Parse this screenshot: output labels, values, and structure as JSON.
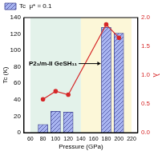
{
  "chart_data": {
    "type": "bar",
    "x_label": "Pressure (GPa)",
    "y_label": "Tc (K)",
    "y2_label": "λ",
    "annotation": "P2₁/m-II GeSH₁₁",
    "x": [
      80,
      100,
      120,
      180,
      200
    ],
    "series": [
      {
        "name": "Tc  μ* = 0.1",
        "type": "bar",
        "color": "#aab6f2",
        "values": [
          10,
          26,
          25,
          128,
          121
        ]
      },
      {
        "type": "line",
        "axis": "y2",
        "color": "#d62728",
        "marker": "circle",
        "values": [
          0.58,
          0.72,
          0.66,
          1.88,
          1.65
        ]
      }
    ],
    "xlim": [
      60,
      220
    ],
    "xticks": [
      60,
      80,
      100,
      120,
      140,
      160,
      180,
      200,
      220
    ],
    "ylim": [
      0,
      140
    ],
    "yticks": [
      0,
      20,
      40,
      60,
      80,
      100,
      120,
      140
    ],
    "y2lim": [
      0,
      2
    ],
    "y2ticks": [
      {
        "value": 0,
        "label": "0.0"
      },
      0.5,
      {
        "value": 1,
        "label": "1.0"
      },
      1.5,
      {
        "value": 2,
        "label": "2.0"
      }
    ],
    "legend": "upper left",
    "grid": false,
    "shaded_regions": [
      {
        "from": 60,
        "to": 140,
        "color": "#e3f2ea"
      },
      {
        "from": 140,
        "to": 220,
        "color": "#fcf7d8"
      }
    ]
  }
}
